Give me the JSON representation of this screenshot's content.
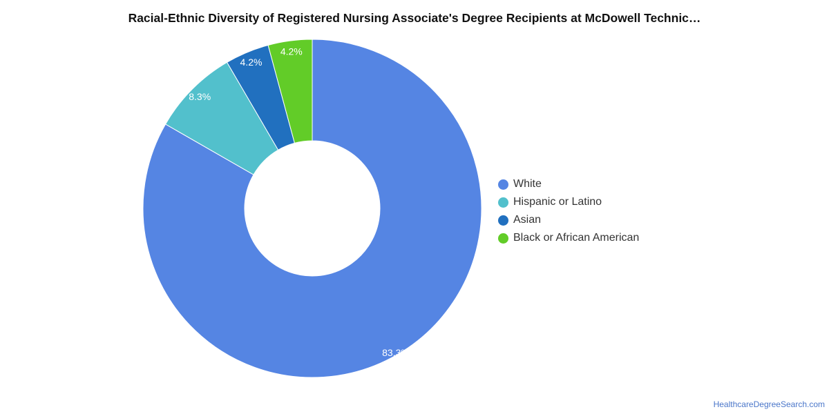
{
  "chart_data": {
    "type": "pie",
    "title": "Racial-Ethnic Diversity of Registered Nursing Associate's Degree Recipients at McDowell Technic…",
    "categories": [
      "White",
      "Hispanic or Latino",
      "Asian",
      "Black or African American"
    ],
    "values": [
      83.3,
      8.3,
      4.2,
      4.2
    ],
    "data_labels": [
      "83.3%",
      "8.3%",
      "4.2%",
      "4.2%"
    ],
    "colors": [
      "#5585e3",
      "#52c0cc",
      "#2170bf",
      "#62cc28"
    ],
    "legend_position": "right",
    "donut": true
  },
  "source": {
    "label": "HealthcareDegreeSearch.com"
  }
}
